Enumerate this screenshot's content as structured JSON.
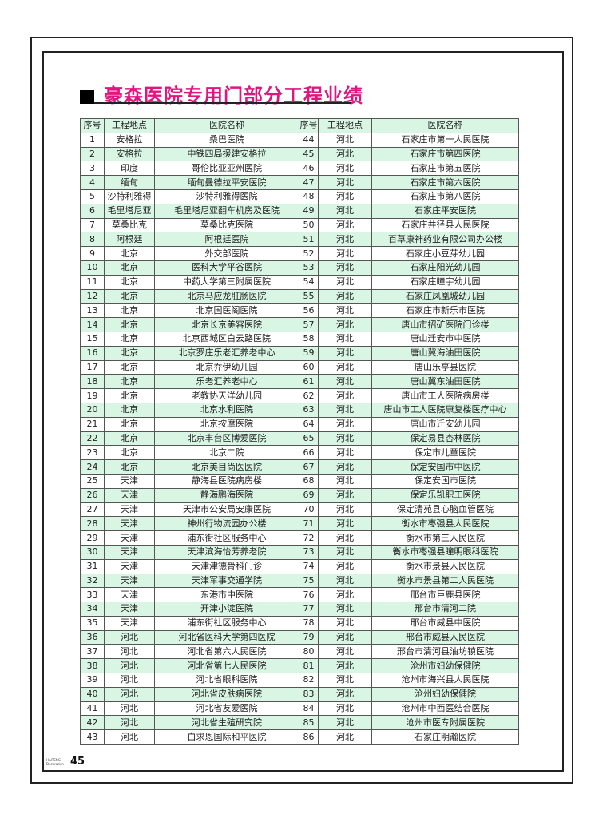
{
  "title": "豪森医院专用门部分工程业绩",
  "headers": [
    "序号",
    "工程地点",
    "医院名称",
    "序号",
    "工程地点",
    "医院名称"
  ],
  "left": [
    [
      "1",
      "安格拉",
      "桑巴医院"
    ],
    [
      "2",
      "安格拉",
      "中铁四局援建安格拉"
    ],
    [
      "3",
      "印度",
      "哥伦比亚亚州医院"
    ],
    [
      "4",
      "缅甸",
      "缅甸曼德拉平安医院"
    ],
    [
      "5",
      "沙特利雅得",
      "沙特利雅得医院"
    ],
    [
      "6",
      "毛里塔尼亚",
      "毛里塔尼亚翻车机房及医院"
    ],
    [
      "7",
      "莫桑比克",
      "莫桑比克医院"
    ],
    [
      "8",
      "阿根廷",
      "阿根廷医院"
    ],
    [
      "9",
      "北京",
      "外交部医院"
    ],
    [
      "10",
      "北京",
      "医科大学平谷医院"
    ],
    [
      "11",
      "北京",
      "中药大学第三附属医院"
    ],
    [
      "12",
      "北京",
      "北京马应龙肛肠医院"
    ],
    [
      "13",
      "北京",
      "北京国医阁医院"
    ],
    [
      "14",
      "北京",
      "北京长京美容医院"
    ],
    [
      "15",
      "北京",
      "北京西城区白云路医院"
    ],
    [
      "16",
      "北京",
      "北京罗庄乐老汇养老中心"
    ],
    [
      "17",
      "北京",
      "北京乔伊幼儿园"
    ],
    [
      "18",
      "北京",
      "乐老汇养老中心"
    ],
    [
      "19",
      "北京",
      "老教协天洋幼儿园"
    ],
    [
      "20",
      "北京",
      "北京水利医院"
    ],
    [
      "21",
      "北京",
      "北京按摩医院"
    ],
    [
      "22",
      "北京",
      "北京丰台区博爱医院"
    ],
    [
      "23",
      "北京",
      "北京二院"
    ],
    [
      "24",
      "北京",
      "北京美目尚医医院"
    ],
    [
      "25",
      "天津",
      "静海县医院病房楼"
    ],
    [
      "26",
      "天津",
      "静海鹏海医院"
    ],
    [
      "27",
      "天津",
      "天津市公安局安康医院"
    ],
    [
      "28",
      "天津",
      "神州行物流园办公楼"
    ],
    [
      "29",
      "天津",
      "浦东街社区服务中心"
    ],
    [
      "30",
      "天津",
      "天津滨海怡芳养老院"
    ],
    [
      "31",
      "天津",
      "天津津德骨科门诊"
    ],
    [
      "32",
      "天津",
      "天津军事交通学院"
    ],
    [
      "33",
      "天津",
      "东港市中医院"
    ],
    [
      "34",
      "天津",
      "开津小淀医院"
    ],
    [
      "35",
      "天津",
      "浦东街社区服务中心"
    ],
    [
      "36",
      "河北",
      "河北省医科大学第四医院"
    ],
    [
      "37",
      "河北",
      "河北省第六人民医院"
    ],
    [
      "38",
      "河北",
      "河北省第七人民医院"
    ],
    [
      "39",
      "河北",
      "河北省眼科医院"
    ],
    [
      "40",
      "河北",
      "河北省皮肤病医院"
    ],
    [
      "41",
      "河北",
      "河北省友爱医院"
    ],
    [
      "42",
      "河北",
      "河北省生殖研究院"
    ],
    [
      "43",
      "河北",
      "白求恩国际和平医院"
    ]
  ],
  "right": [
    [
      "44",
      "河北",
      "石家庄市第一人民医院"
    ],
    [
      "45",
      "河北",
      "石家庄市第四医院"
    ],
    [
      "46",
      "河北",
      "石家庄市第五医院"
    ],
    [
      "47",
      "河北",
      "石家庄市第六医院"
    ],
    [
      "48",
      "河北",
      "石家庄市第八医院"
    ],
    [
      "49",
      "河北",
      "石家庄平安医院"
    ],
    [
      "50",
      "河北",
      "石家庄井径县人民医院"
    ],
    [
      "51",
      "河北",
      "百草康神药业有限公司办公楼"
    ],
    [
      "52",
      "河北",
      "石家庄小豆芽幼儿园"
    ],
    [
      "53",
      "河北",
      "石家庄阳光幼儿园"
    ],
    [
      "54",
      "河北",
      "石家庄瞳宇幼儿园"
    ],
    [
      "55",
      "河北",
      "石家庄凤凰城幼儿园"
    ],
    [
      "56",
      "河北",
      "石家庄市新乐市医院"
    ],
    [
      "57",
      "河北",
      "唐山市招矿医院门诊楼"
    ],
    [
      "58",
      "河北",
      "唐山迁安市中医院"
    ],
    [
      "59",
      "河北",
      "唐山冀海油田医院"
    ],
    [
      "60",
      "河北",
      "唐山乐亭县医院"
    ],
    [
      "61",
      "河北",
      "唐山冀东油田医院"
    ],
    [
      "62",
      "河北",
      "唐山市工人医院病房楼"
    ],
    [
      "63",
      "河北",
      "唐山市工人医院康复楼医疗中心"
    ],
    [
      "64",
      "河北",
      "唐山市迁安幼儿园"
    ],
    [
      "65",
      "河北",
      "保定易县杏林医院"
    ],
    [
      "66",
      "河北",
      "保定市儿童医院"
    ],
    [
      "67",
      "河北",
      "保定安国市中医院"
    ],
    [
      "68",
      "河北",
      "保定安国市医院"
    ],
    [
      "69",
      "河北",
      "保定乐凯职工医院"
    ],
    [
      "70",
      "河北",
      "保定清苑县心脑血管医院"
    ],
    [
      "71",
      "河北",
      "衡水市枣强县人民医院"
    ],
    [
      "72",
      "河北",
      "衡水市第三人民医院"
    ],
    [
      "73",
      "河北",
      "衡水市枣强县瞳明眼科医院"
    ],
    [
      "74",
      "河北",
      "衡水市景县人民医院"
    ],
    [
      "75",
      "河北",
      "衡水市景县第二人民医院"
    ],
    [
      "76",
      "河北",
      "邢台市巨鹿县医院"
    ],
    [
      "77",
      "河北",
      "邢台市清河二院"
    ],
    [
      "78",
      "河北",
      "邢台市威县中医院"
    ],
    [
      "79",
      "河北",
      "邢台市威县人民医院"
    ],
    [
      "80",
      "河北",
      "邢台市清河县油坊镇医院"
    ],
    [
      "81",
      "河北",
      "沧州市妇幼保健院"
    ],
    [
      "82",
      "河北",
      "沧州市海兴县人民医院"
    ],
    [
      "83",
      "河北",
      "沧州妇幼保健院"
    ],
    [
      "84",
      "河北",
      "沧州市中西医结合医院"
    ],
    [
      "85",
      "河北",
      "沧州市医专附属医院"
    ],
    [
      "86",
      "河北",
      "石家庄明瀚医院"
    ]
  ],
  "footer": {
    "brand": "HAITENG Decoration",
    "page": "45"
  },
  "colors": {
    "title": "#e0157f",
    "row_alt": "#d9f5e4"
  }
}
